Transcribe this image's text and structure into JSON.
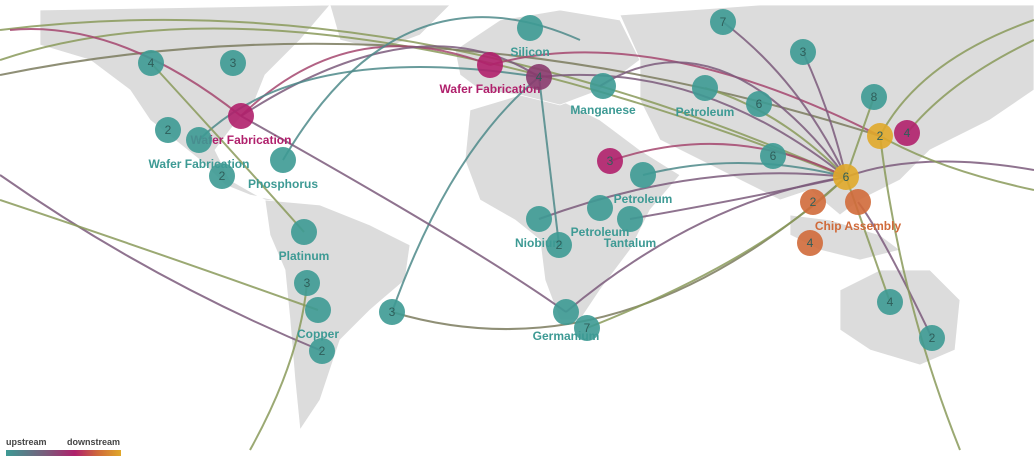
{
  "nodes": [
    {
      "label": "Silicon"
    },
    {
      "label": "Wafer Fabrication"
    },
    {
      "count": 4
    },
    {
      "label": "Manganese"
    },
    {
      "count": 7
    },
    {
      "count": 3
    },
    {
      "label": "Petroleum"
    },
    {
      "count": 6
    },
    {
      "count": 8
    },
    {
      "count": 2
    },
    {
      "count": 4
    },
    {
      "count": 6
    },
    {
      "count": 6
    },
    {
      "count": 2
    },
    {
      "label": "Chip Assembly"
    },
    {
      "count": 4
    },
    {
      "count": 3
    },
    {
      "label": "Petroleum"
    },
    {
      "label": "Petroleum"
    },
    {
      "label": "Tantalum"
    },
    {
      "label": "Niobium"
    },
    {
      "count": 2
    },
    {
      "label": "Germanium"
    },
    {
      "count": 7
    },
    {
      "count": 4
    },
    {
      "count": 2
    },
    {
      "count": 4
    },
    {
      "count": 3
    },
    {
      "label": "Wafer Fabrication"
    },
    {
      "count": 2
    },
    {
      "label": "Wafer Fabrication"
    },
    {
      "count": 2
    },
    {
      "label": "Phosphorus"
    },
    {
      "label": "Platinum"
    },
    {
      "count": 3
    },
    {
      "label": "Copper"
    },
    {
      "count": 2
    },
    {
      "count": 3
    }
  ],
  "legend": {
    "upstream": "upstream",
    "downstream": "downstream"
  }
}
